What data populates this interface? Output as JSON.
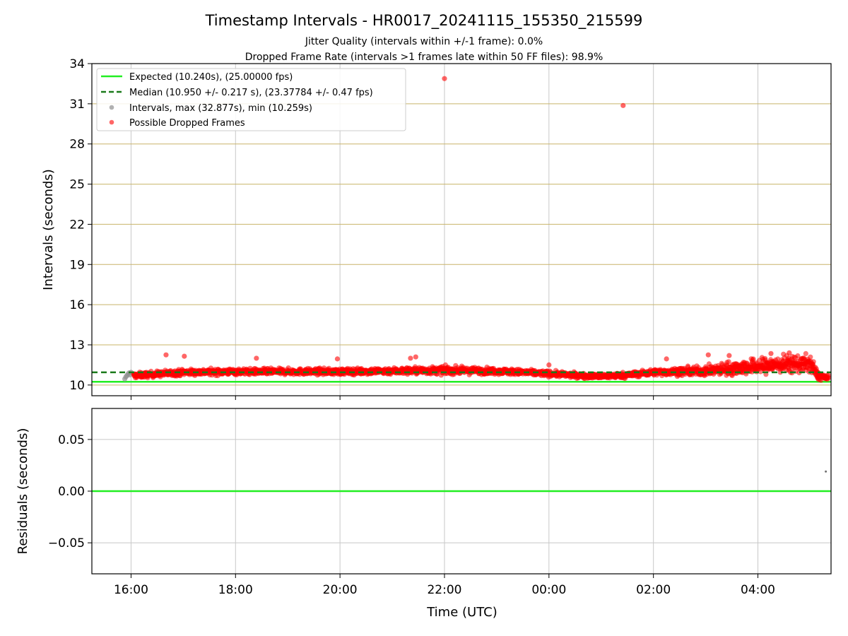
{
  "title": "Timestamp Intervals - HR0017_20241115_155350_215599",
  "subtitle_1": "Jitter Quality (intervals within +/-1 frame): 0.0%",
  "subtitle_2": "Dropped Frame Rate (intervals >1 frames late within 50 FF files): 98.9%",
  "colors": {
    "expected": "#22ee22",
    "median": "#1a7a1a",
    "intervals": "#909090",
    "dropped": "#ff0000",
    "h_grid": "#c8b46a",
    "v_grid": "#c8c8c8"
  },
  "chart_data": [
    {
      "type": "scatter",
      "xlabel": "",
      "ylabel": "Intervals (seconds)",
      "x_unit": "hours UTC since 16:00 (2024-11-15)",
      "xlim": [
        -0.75,
        13.4
      ],
      "ylim": [
        9.2,
        34
      ],
      "y_ticks": [
        10,
        13,
        16,
        19,
        22,
        25,
        28,
        31,
        34
      ],
      "x_ticks": [
        0,
        2,
        4,
        6,
        8,
        10,
        12
      ],
      "x_tick_labels": [
        "16:00",
        "18:00",
        "20:00",
        "22:00",
        "00:00",
        "02:00",
        "04:00"
      ],
      "grid": true,
      "legend_placement": "top-left",
      "legend": [
        "Expected (10.240s), (25.00000 fps)",
        "Median (10.950 +/- 0.217 s), (23.37784 +/- 0.47 fps)",
        "Intervals, max (32.877s), min (10.259s)",
        "Possible Dropped Frames"
      ],
      "expected_line": 10.24,
      "median_line": 10.95,
      "intervals_series": {
        "x": [
          -0.12,
          -0.1,
          -0.08,
          -0.06,
          -0.04,
          -0.02,
          0.0
        ],
        "y": [
          10.45,
          10.6,
          10.7,
          10.8,
          10.9,
          10.75,
          10.95
        ]
      },
      "dropped_band": {
        "x": [
          0.05,
          1,
          2,
          3,
          4,
          5,
          6,
          7,
          8,
          8.6,
          9,
          9.5,
          10,
          11,
          11.5,
          12,
          12.5,
          13.0,
          13.15,
          13.35
        ],
        "y": [
          10.7,
          10.95,
          11.0,
          11.0,
          11.0,
          11.05,
          11.1,
          11.05,
          10.85,
          10.7,
          10.65,
          10.75,
          10.95,
          11.05,
          11.25,
          11.4,
          11.55,
          11.6,
          10.7,
          10.5
        ],
        "spread": [
          0.18,
          0.2,
          0.2,
          0.2,
          0.2,
          0.22,
          0.25,
          0.2,
          0.18,
          0.16,
          0.16,
          0.18,
          0.2,
          0.3,
          0.45,
          0.5,
          0.55,
          0.55,
          0.3,
          0.15
        ]
      },
      "dropped_outliers": {
        "x": [
          0.67,
          1.02,
          2.4,
          3.95,
          5.35,
          5.45,
          6.0,
          8.0,
          9.42,
          10.25,
          11.05,
          11.45,
          12.25,
          12.6
        ],
        "y": [
          12.25,
          12.15,
          12.0,
          11.95,
          12.0,
          12.1,
          32.88,
          11.5,
          30.87,
          11.95,
          12.25,
          12.2,
          12.35,
          12.4
        ]
      }
    },
    {
      "type": "line",
      "xlabel": "Time (UTC)",
      "ylabel": "Residuals (seconds)",
      "xlim": [
        -0.75,
        13.4
      ],
      "ylim": [
        -0.08,
        0.08
      ],
      "y_ticks": [
        -0.05,
        0.0,
        0.05
      ],
      "y_tick_labels": [
        "−0.05",
        "0.00",
        "0.05"
      ],
      "x_ticks": [
        0,
        2,
        4,
        6,
        8,
        10,
        12
      ],
      "x_tick_labels": [
        "16:00",
        "18:00",
        "20:00",
        "22:00",
        "00:00",
        "02:00",
        "04:00"
      ],
      "grid": true,
      "zero_line": 0.0,
      "residual_points": {
        "x": [
          13.3
        ],
        "y": [
          0.019
        ]
      }
    }
  ]
}
